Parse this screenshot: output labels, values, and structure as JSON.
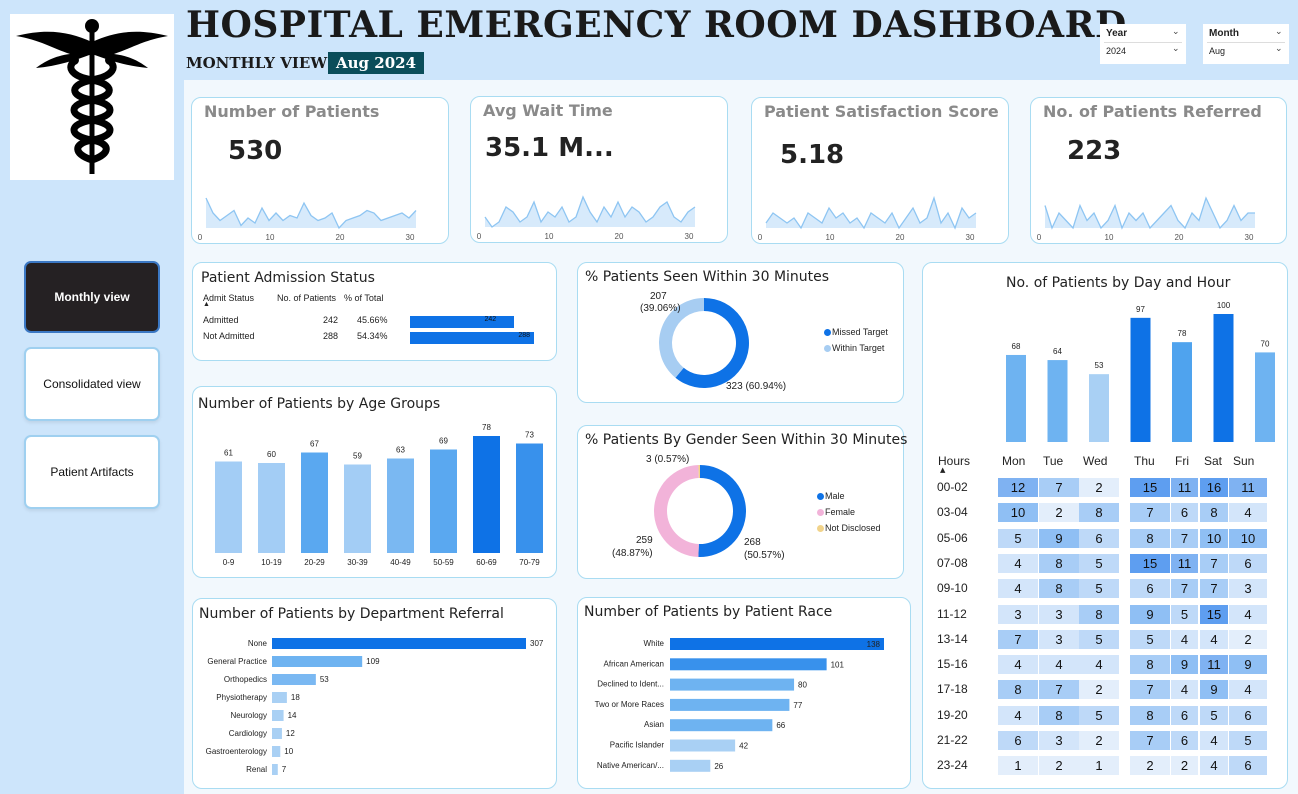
{
  "header": {
    "title": "HOSPITAL EMERGENCY ROOM DASHBOARD",
    "subtitle": "MONTHLY VIEW",
    "period": "Aug 2024"
  },
  "filters": {
    "year": {
      "label": "Year",
      "value": "2024"
    },
    "month": {
      "label": "Month",
      "value": "Aug"
    }
  },
  "nav": [
    {
      "label": "Monthly view",
      "active": true
    },
    {
      "label": "Consolidated view",
      "active": false
    },
    {
      "label": "Patient Artifacts",
      "active": false
    }
  ],
  "kpis": [
    {
      "title": "Number of Patients",
      "value": "530",
      "spark": [
        14,
        8,
        5,
        7,
        9,
        3,
        6,
        4,
        10,
        5,
        8,
        5,
        7,
        6,
        12,
        7,
        5,
        6,
        8,
        2,
        5,
        6,
        7,
        9,
        8,
        5,
        6,
        7,
        8,
        6,
        9
      ]
    },
    {
      "title": "Avg Wait Time",
      "value": "35.1 M...",
      "spark": [
        34,
        32,
        33,
        36,
        35,
        33,
        34,
        37,
        33,
        35,
        34,
        36,
        33,
        34,
        38,
        35,
        33,
        36,
        34,
        37,
        34,
        36,
        35,
        33,
        34,
        36,
        37,
        34,
        33,
        35,
        36
      ]
    },
    {
      "title": "Patient Satisfaction Score",
      "value": "5.18",
      "spark": [
        4,
        6,
        5,
        4,
        5,
        3,
        6,
        5,
        4,
        7,
        5,
        6,
        4,
        5,
        3,
        6,
        5,
        4,
        6,
        3,
        5,
        7,
        4,
        5,
        9,
        4,
        6,
        3,
        7,
        5,
        6
      ]
    },
    {
      "title": "No. of Patients Referred",
      "value": "223",
      "spark": [
        8,
        5,
        7,
        6,
        5,
        8,
        6,
        7,
        5,
        6,
        8,
        5,
        7,
        6,
        7,
        5,
        6,
        7,
        8,
        6,
        5,
        7,
        6,
        9,
        7,
        5,
        6,
        8,
        6,
        7,
        7
      ]
    }
  ],
  "spark_axis": [
    "0",
    "10",
    "20",
    "30"
  ],
  "admission": {
    "title": "Patient Admission Status",
    "headers": [
      "Admit Status",
      "No. of Patients",
      "% of Total"
    ],
    "rows": [
      {
        "status": "Admitted",
        "count": "242",
        "pct": "45.66%",
        "value": 242
      },
      {
        "status": "Not Admitted",
        "count": "288",
        "pct": "54.34%",
        "value": 288
      }
    ]
  },
  "seen30": {
    "title": "% Patients Seen Within 30 Minutes",
    "label_within": "207",
    "label_within_pct": "(39.06%)",
    "label_missed": "323 (60.94%)",
    "legend": [
      {
        "name": "Missed Target",
        "color": "#0e72e6"
      },
      {
        "name": "Within Target",
        "color": "#a7cdf2"
      }
    ]
  },
  "gender": {
    "title": "% Patients By Gender Seen Within 30 Minutes",
    "label_nd": "3 (0.57%)",
    "label_female": "259",
    "label_female_pct": "(48.87%)",
    "label_male": "268",
    "label_male_pct": "(50.57%)",
    "legend": [
      {
        "name": "Male",
        "color": "#0e72e6"
      },
      {
        "name": "Female",
        "color": "#f2b3d9"
      },
      {
        "name": "Not Disclosed",
        "color": "#f1d38a"
      }
    ]
  },
  "heatmap": {
    "hours_label": "Hours",
    "days": [
      "Mon",
      "Tue",
      "Wed",
      "Thu",
      "Fri",
      "Sat",
      "Sun"
    ],
    "rows": [
      {
        "hour": "00-02",
        "vals": [
          12,
          7,
          2,
          15,
          11,
          16,
          11
        ]
      },
      {
        "hour": "03-04",
        "vals": [
          10,
          2,
          8,
          7,
          6,
          8,
          4
        ]
      },
      {
        "hour": "05-06",
        "vals": [
          5,
          9,
          6,
          8,
          7,
          10,
          10
        ]
      },
      {
        "hour": "07-08",
        "vals": [
          4,
          8,
          5,
          15,
          11,
          7,
          6
        ]
      },
      {
        "hour": "09-10",
        "vals": [
          4,
          8,
          5,
          6,
          7,
          7,
          3
        ]
      },
      {
        "hour": "11-12",
        "vals": [
          3,
          3,
          8,
          9,
          5,
          15,
          4
        ]
      },
      {
        "hour": "13-14",
        "vals": [
          7,
          3,
          5,
          5,
          4,
          4,
          2
        ]
      },
      {
        "hour": "15-16",
        "vals": [
          4,
          4,
          4,
          8,
          9,
          11,
          9
        ]
      },
      {
        "hour": "17-18",
        "vals": [
          8,
          7,
          2,
          7,
          4,
          9,
          4
        ]
      },
      {
        "hour": "19-20",
        "vals": [
          4,
          8,
          5,
          8,
          6,
          5,
          6
        ]
      },
      {
        "hour": "21-22",
        "vals": [
          6,
          3,
          2,
          7,
          6,
          4,
          5
        ]
      },
      {
        "hour": "23-24",
        "vals": [
          1,
          2,
          1,
          2,
          2,
          4,
          6
        ]
      }
    ]
  },
  "chart_data": [
    {
      "type": "bar",
      "title": "Number of Patients by Age Groups",
      "categories": [
        "0-9",
        "10-19",
        "20-29",
        "30-39",
        "40-49",
        "50-59",
        "60-69",
        "70-79"
      ],
      "values": [
        61,
        60,
        67,
        59,
        63,
        69,
        78,
        73
      ],
      "ylim": [
        0,
        80
      ]
    },
    {
      "type": "bar",
      "title": "No. of Patients by Day and Hour",
      "categories": [
        "Mon",
        "Tue",
        "Wed",
        "Thu",
        "Fri",
        "Sat",
        "Sun"
      ],
      "values": [
        68,
        64,
        53,
        97,
        78,
        100,
        70
      ],
      "ylim": [
        0,
        105
      ]
    },
    {
      "type": "bar",
      "orientation": "horizontal",
      "title": "Number of Patients by Department Referral",
      "categories": [
        "None",
        "General Practice",
        "Orthopedics",
        "Physiotherapy",
        "Neurology",
        "Cardiology",
        "Gastroenterology",
        "Renal"
      ],
      "values": [
        307,
        109,
        53,
        18,
        14,
        12,
        10,
        7
      ]
    },
    {
      "type": "bar",
      "orientation": "horizontal",
      "title": "Number of Patients by Patient Race",
      "categories": [
        "White",
        "African American",
        "Declined to Ident...",
        "Two or More Races",
        "Asian",
        "Pacific Islander",
        "Native American/..."
      ],
      "values": [
        138,
        101,
        80,
        77,
        66,
        42,
        26
      ]
    },
    {
      "type": "pie",
      "title": "% Patients Seen Within 30 Minutes",
      "categories": [
        "Missed Target",
        "Within Target"
      ],
      "values": [
        323,
        207
      ]
    },
    {
      "type": "pie",
      "title": "% Patients By Gender Seen Within 30 Minutes",
      "categories": [
        "Male",
        "Female",
        "Not Disclosed"
      ],
      "values": [
        268,
        259,
        3
      ]
    }
  ]
}
